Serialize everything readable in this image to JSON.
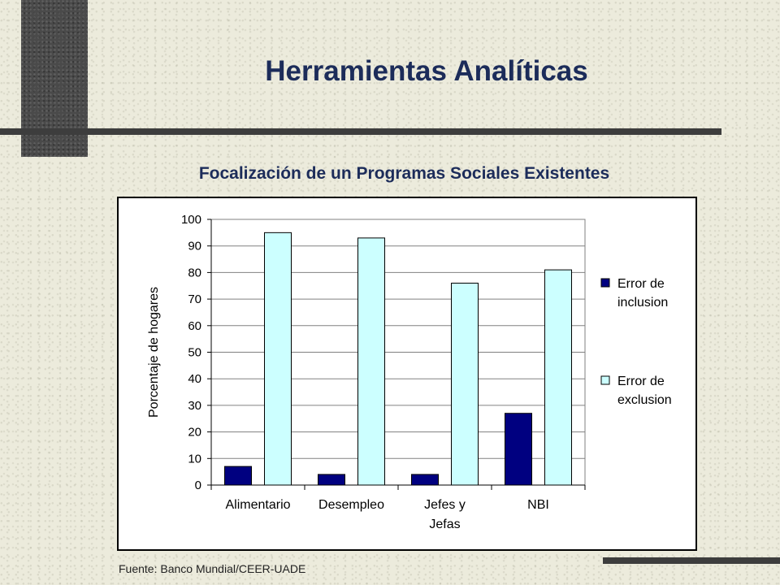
{
  "slide": {
    "title": "Herramientas Analíticas",
    "subtitle": "Focalización de un Programas Sociales Existentes",
    "source": "Fuente: Banco Mundial/CEER-UADE"
  },
  "colors": {
    "title": "#1c2c5a",
    "inclusion": "#000080",
    "exclusion": "#ccffff"
  },
  "chart_data": {
    "type": "bar",
    "title": "",
    "xlabel": "",
    "ylabel": "Porcentaje de hogares",
    "ylim": [
      0,
      100
    ],
    "yticks": [
      0,
      10,
      20,
      30,
      40,
      50,
      60,
      70,
      80,
      90,
      100
    ],
    "grid": true,
    "legend_position": "right",
    "categories": [
      [
        "Alimentario"
      ],
      [
        "Desempleo"
      ],
      [
        "Jefes y",
        "Jefas"
      ],
      [
        "NBI"
      ]
    ],
    "series": [
      {
        "name": [
          "Error de",
          "inclusion"
        ],
        "color": "#000080",
        "values": [
          7,
          4,
          4,
          27
        ]
      },
      {
        "name": [
          "Error de",
          "exclusion"
        ],
        "color": "#ccffff",
        "values": [
          95,
          93,
          76,
          81
        ]
      }
    ]
  }
}
